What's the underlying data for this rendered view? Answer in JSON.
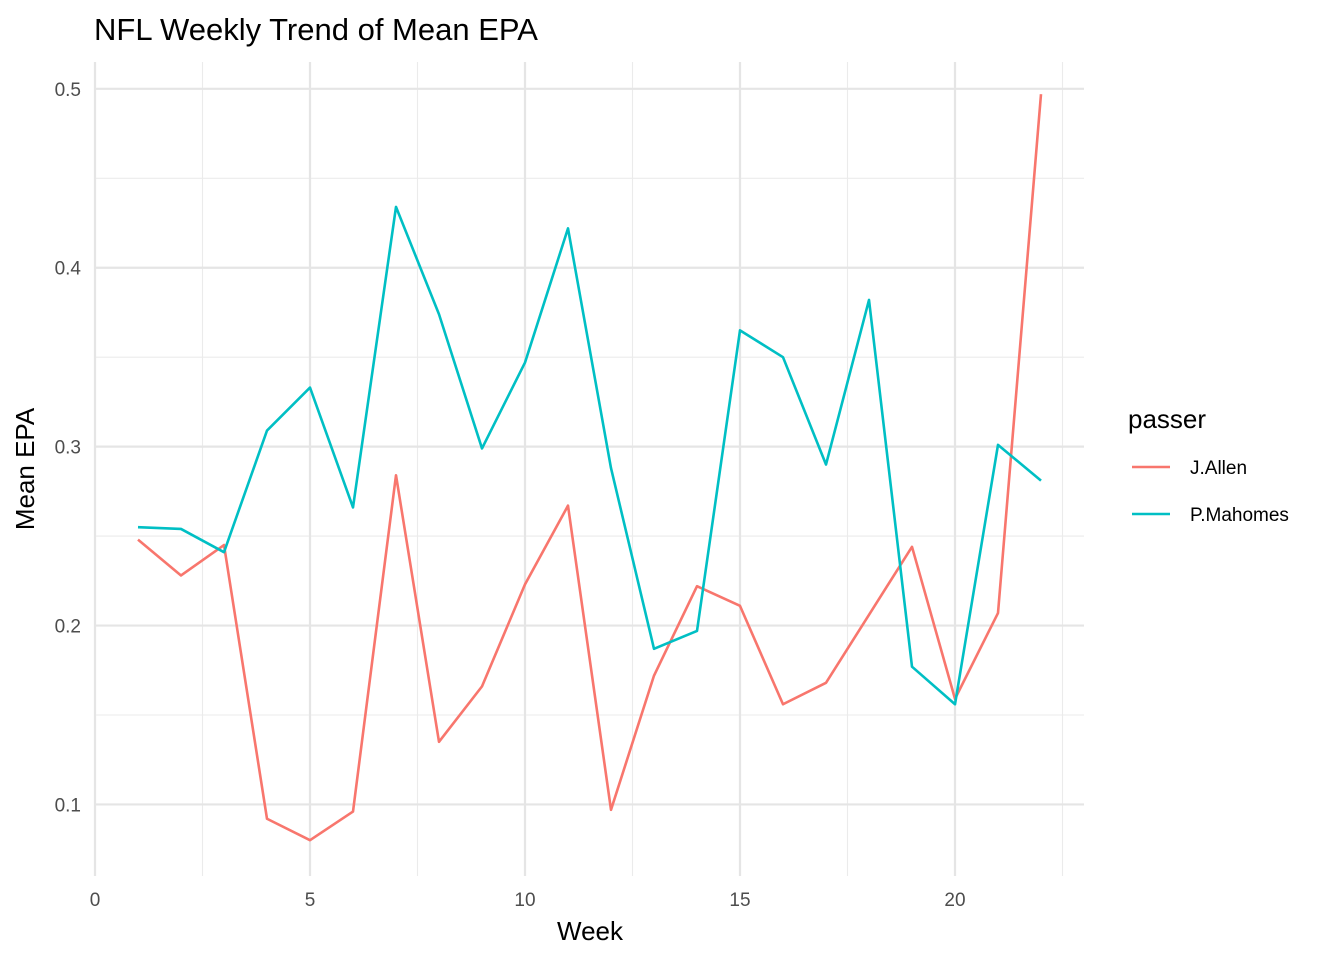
{
  "chart_data": {
    "type": "line",
    "title": "NFL Weekly Trend of Mean EPA",
    "xlabel": "Week",
    "ylabel": "Mean EPA",
    "xlim": [
      0,
      23
    ],
    "ylim": [
      0.06,
      0.515
    ],
    "x_ticks": [
      0,
      5,
      10,
      15,
      20
    ],
    "x_minor_ticks": [
      2.5,
      7.5,
      12.5,
      17.5,
      22.5
    ],
    "y_ticks": [
      0.1,
      0.2,
      0.3,
      0.4,
      0.5
    ],
    "y_minor_ticks": [
      0.15,
      0.25,
      0.35,
      0.45
    ],
    "x_tick_labels": [
      "0",
      "5",
      "10",
      "15",
      "20"
    ],
    "y_tick_labels": [
      "0.1",
      "0.2",
      "0.3",
      "0.4",
      "0.5"
    ],
    "grid": true,
    "legend": {
      "title": "passer",
      "position": "right"
    },
    "series": [
      {
        "name": "J.Allen",
        "color": "#F8766D",
        "x": [
          1,
          2,
          3,
          4,
          5,
          6,
          7,
          8,
          9,
          10,
          11,
          12,
          13,
          14,
          15,
          16,
          17,
          18,
          19,
          20,
          21,
          22
        ],
        "values": [
          0.248,
          0.228,
          0.245,
          0.092,
          0.08,
          0.096,
          0.284,
          0.135,
          0.166,
          0.223,
          0.267,
          0.097,
          0.172,
          0.222,
          0.211,
          0.156,
          0.168,
          0.206,
          0.244,
          0.159,
          0.207,
          0.497
        ]
      },
      {
        "name": "P.Mahomes",
        "color": "#00BFC4",
        "x": [
          1,
          2,
          3,
          4,
          5,
          6,
          7,
          8,
          9,
          10,
          11,
          12,
          13,
          14,
          15,
          16,
          17,
          18,
          19,
          20,
          21,
          22
        ],
        "values": [
          0.255,
          0.254,
          0.241,
          0.309,
          0.333,
          0.266,
          0.434,
          0.374,
          0.299,
          0.347,
          0.422,
          0.288,
          0.187,
          0.197,
          0.365,
          0.35,
          0.29,
          0.382,
          0.177,
          0.156,
          0.301,
          0.281
        ]
      }
    ]
  }
}
